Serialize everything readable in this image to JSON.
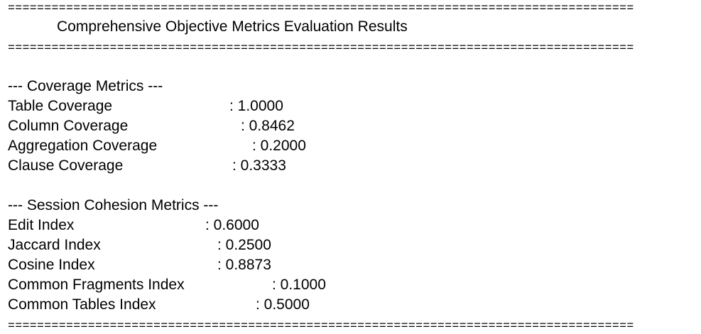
{
  "separator": "======================================================================================",
  "title": "Comprehensive Objective Metrics Evaluation Results",
  "coverage": {
    "header": "--- Coverage Metrics ---",
    "rows": [
      {
        "label": "Table Coverage",
        "value": ": 1.0000"
      },
      {
        "label": "Column Coverage",
        "value": ": 0.8462"
      },
      {
        "label": "Aggregation Coverage",
        "value": ": 0.2000"
      },
      {
        "label": "Clause Coverage",
        "value": ": 0.3333"
      }
    ]
  },
  "cohesion": {
    "header": "--- Session Cohesion Metrics ---",
    "rows": [
      {
        "label": "Edit Index",
        "value": ": 0.6000"
      },
      {
        "label": "Jaccard Index",
        "value": ": 0.2500"
      },
      {
        "label": "Cosine Index",
        "value": ": 0.8873"
      },
      {
        "label": "Common Fragments Index",
        "value": ": 0.1000"
      },
      {
        "label": "Common Tables Index",
        "value": ": 0.5000"
      }
    ]
  }
}
